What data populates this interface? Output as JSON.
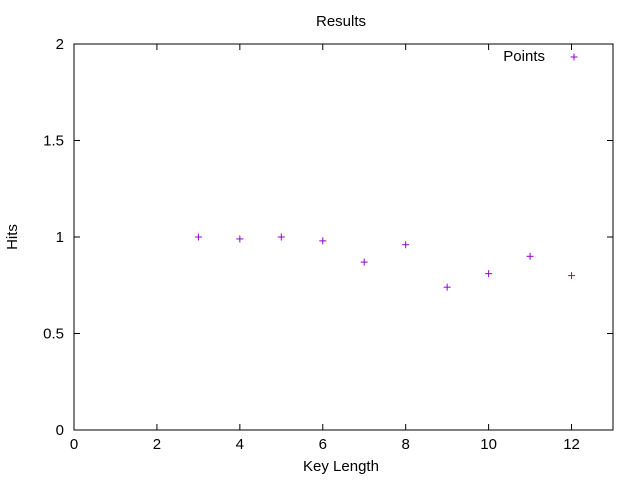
{
  "chart_data": {
    "type": "scatter",
    "title": "Results",
    "xlabel": "Key Length",
    "ylabel": "Hits",
    "xlim": [
      0,
      13
    ],
    "ylim": [
      0,
      2
    ],
    "xticks": [
      0,
      2,
      4,
      6,
      8,
      10,
      12
    ],
    "yticks": [
      0,
      0.5,
      1,
      1.5,
      2
    ],
    "xtick_labels": [
      "0",
      "2",
      "4",
      "6",
      "8",
      "10",
      "12"
    ],
    "ytick_labels": [
      "0",
      "0.5",
      "1",
      "1.5",
      "2"
    ],
    "grid": false,
    "legend_position": "top-right",
    "series": [
      {
        "name": "Points",
        "marker": "plus",
        "color": "#9400d3",
        "x": [
          3,
          4,
          5,
          6,
          7,
          8,
          9,
          10,
          11,
          12
        ],
        "y": [
          1.0,
          0.99,
          1.0,
          0.98,
          0.87,
          0.96,
          0.74,
          0.81,
          0.9,
          0.8
        ]
      }
    ]
  }
}
